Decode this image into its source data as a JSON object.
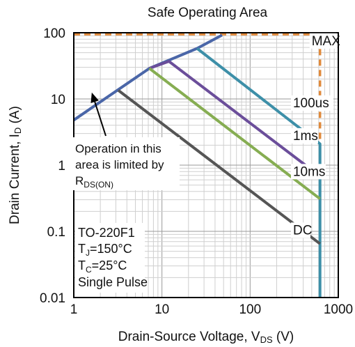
{
  "chart_data": {
    "type": "line",
    "title": "Safe Operating Area",
    "xscale": "log",
    "yscale": "log",
    "xlim": [
      1,
      1000
    ],
    "ylim": [
      0.01,
      100
    ],
    "grid": true,
    "x_ticks": [
      "1",
      "10",
      "100",
      "1000"
    ],
    "y_ticks": [
      "0.01",
      "0.1",
      "1",
      "10",
      "100"
    ],
    "xlabel": {
      "main": "Drain-Source Voltage, V",
      "sub": "DS",
      "unit": " (V)"
    },
    "ylabel": {
      "main": "Drain Current, I",
      "sub": "D",
      "unit": " (A)"
    },
    "series": [
      {
        "name": "MAX",
        "color": "#e08a3c",
        "dashed": true,
        "points": [
          [
            1,
            95
          ],
          [
            620,
            95
          ],
          [
            620,
            0.01
          ]
        ]
      },
      {
        "name": "RDS(ON) limit",
        "color": "#4a66a8",
        "points": [
          [
            1,
            4.8
          ],
          [
            7.2,
            29
          ],
          [
            25,
            58
          ],
          [
            48,
            92
          ]
        ]
      },
      {
        "name": "100us",
        "color": "#3d8fa8",
        "points": [
          [
            25,
            58
          ],
          [
            620,
            2.1
          ],
          [
            620,
            0.01
          ]
        ]
      },
      {
        "name": "1ms",
        "color": "#6b4e9a",
        "points": [
          [
            7.2,
            29
          ],
          [
            12,
            37
          ],
          [
            620,
            0.68
          ]
        ]
      },
      {
        "name": "10ms",
        "color": "#86ad52",
        "points": [
          [
            7.2,
            29
          ],
          [
            620,
            0.31
          ]
        ]
      },
      {
        "name": "DC",
        "color": "#555555",
        "points": [
          [
            3.2,
            13.5
          ],
          [
            620,
            0.065
          ]
        ]
      }
    ],
    "curve_labels": [
      {
        "text": "MAX",
        "x": 620,
        "y": 65
      },
      {
        "text": "100us",
        "x": 280,
        "y": 7.5
      },
      {
        "text": "1ms",
        "x": 280,
        "y": 2.4
      },
      {
        "text": "10ms",
        "x": 280,
        "y": 0.69
      },
      {
        "text": "DC",
        "x": 280,
        "y": 0.09
      }
    ],
    "annotation": {
      "lines": [
        "Operation in this",
        "area is limited by"
      ],
      "last_main": "R",
      "last_sub": "DS(ON)",
      "arrow_to": [
        1.6,
        12.5
      ]
    },
    "conditions": {
      "line1": "TO-220F1",
      "line2": {
        "main": "T",
        "sub": "J",
        "rest": "=150°C"
      },
      "line3": {
        "main": "T",
        "sub": "C",
        "rest": "=25°C"
      },
      "line4": "Single Pulse"
    }
  }
}
